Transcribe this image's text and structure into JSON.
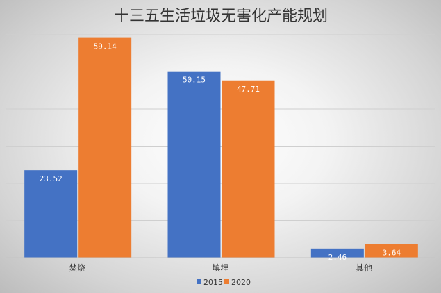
{
  "chart_data": {
    "type": "bar",
    "title": "十三五生活垃圾无害化产能规划",
    "categories": [
      "焚烧",
      "填埋",
      "其他"
    ],
    "series": [
      {
        "name": "2015",
        "color": "#4472C4",
        "values": [
          23.52,
          50.15,
          2.46
        ],
        "labels": [
          "23.52",
          "50.15",
          "2.46"
        ]
      },
      {
        "name": "2020",
        "color": "#ED7D31",
        "values": [
          59.14,
          47.71,
          3.64
        ],
        "labels": [
          "59.14",
          "47.71",
          "3.64"
        ]
      }
    ],
    "ylim": [
      0,
      60
    ],
    "grid": true,
    "show_y_tick_labels": false,
    "legend_position": "bottom"
  }
}
